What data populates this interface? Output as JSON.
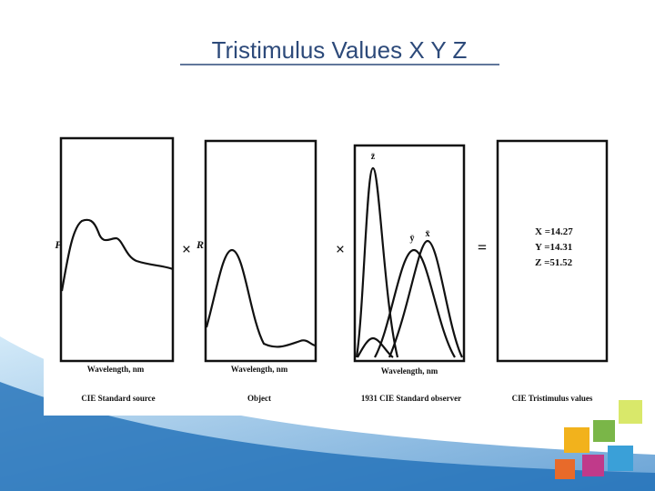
{
  "title": "Tristimulus Values X Y Z",
  "panels": [
    {
      "axis_label": "P",
      "xlabel": "Wavelength, nm",
      "caption": "CIE Standard source"
    },
    {
      "axis_label": "R",
      "xlabel": "Wavelength, nm",
      "caption": "Object"
    },
    {
      "curve_labels": [
        "z̄",
        "ȳ",
        "x̄"
      ],
      "xlabel": "Wavelength, nm",
      "caption": "1931 CIE Standard observer"
    },
    {
      "values": [
        "X =14.27",
        "Y =14.31",
        "Z =51.52"
      ],
      "caption": "CIE Tristimulus values"
    }
  ],
  "operators": [
    "×",
    "×",
    "="
  ]
}
